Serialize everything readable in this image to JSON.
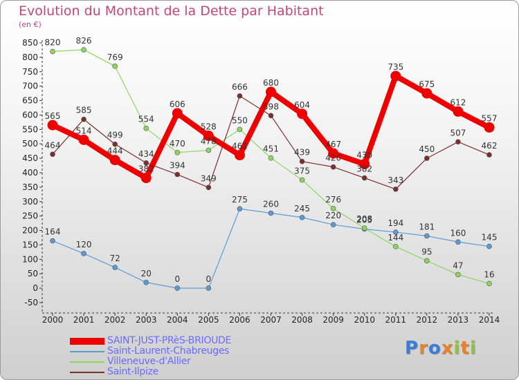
{
  "title": "Evolution du Montant de la Dette par Habitant",
  "unit": "(en €)",
  "logo": "Proxiti",
  "chart_data": {
    "type": "line",
    "title": "Evolution du Montant de la Dette par Habitant",
    "ylabel": "(en €)",
    "ylim": [
      -50,
      850
    ],
    "yticks": [
      -50,
      0,
      50,
      100,
      150,
      200,
      250,
      300,
      350,
      400,
      450,
      500,
      550,
      600,
      650,
      700,
      750,
      800,
      850
    ],
    "x": [
      2000,
      2001,
      2002,
      2003,
      2004,
      2005,
      2006,
      2007,
      2008,
      2009,
      2010,
      2011,
      2012,
      2013,
      2014
    ],
    "grid": false,
    "legend_position": "bottom-left",
    "series": [
      {
        "name": "SAINT-JUST-PRèS-BRIOUDE",
        "color": "#ee0000",
        "values": [
          565,
          514,
          444,
          382,
          606,
          528,
          461,
          680,
          604,
          467,
          430,
          735,
          675,
          612,
          557
        ]
      },
      {
        "name": "Saint-Laurent-Chabreuges",
        "color": "#5b9bd5",
        "values": [
          164,
          120,
          72,
          20,
          0,
          0,
          275,
          260,
          245,
          220,
          205,
          194,
          181,
          160,
          145
        ]
      },
      {
        "name": "Villeneuve-d'Allier",
        "color": "#8fd45f",
        "values": [
          820,
          826,
          769,
          554,
          470,
          478,
          550,
          451,
          375,
          276,
          208,
          144,
          95,
          47,
          16
        ]
      },
      {
        "name": "Saint-Ilpize",
        "color": "#7a2f2f",
        "values": [
          464,
          585,
          499,
          434,
          394,
          349,
          666,
          598,
          439,
          420,
          382,
          343,
          450,
          507,
          462
        ]
      }
    ]
  }
}
